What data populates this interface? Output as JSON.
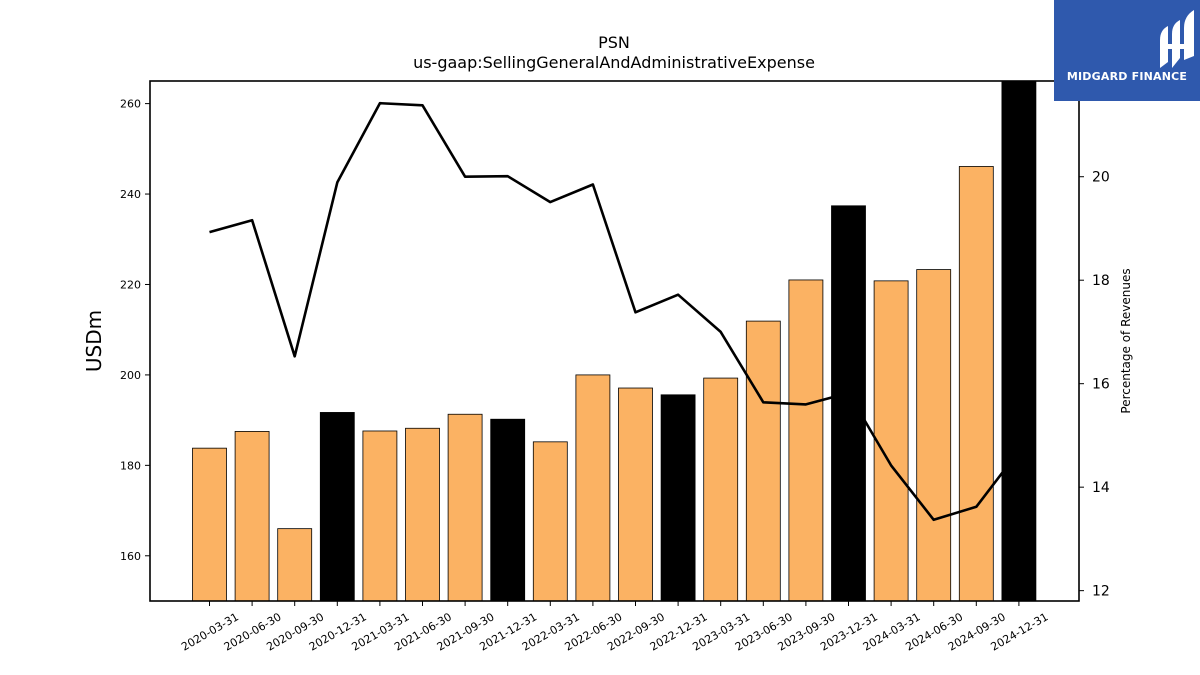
{
  "chart_data": {
    "type": "bar",
    "title": "PSN",
    "subtitle": "us-gaap:SellingGeneralAndAdministrativeExpense",
    "ylabel": "USDm",
    "y2label": "Percentage of Revenues",
    "ylim": [
      150,
      265
    ],
    "y2lim": [
      11.8,
      21.85
    ],
    "yticks": [
      160,
      180,
      200,
      220,
      240,
      260
    ],
    "y2ticks": [
      12,
      14,
      16,
      18,
      20
    ],
    "categories": [
      "2020-03-31",
      "2020-06-30",
      "2020-09-30",
      "2020-12-31",
      "2021-03-31",
      "2021-06-30",
      "2021-09-30",
      "2021-12-31",
      "2022-03-31",
      "2022-06-30",
      "2022-09-30",
      "2022-12-31",
      "2023-03-31",
      "2023-06-30",
      "2023-09-30",
      "2023-12-31",
      "2024-03-31",
      "2024-06-30",
      "2024-09-30",
      "2024-12-31"
    ],
    "series": [
      {
        "values": [
          183.8,
          187.5,
          166.0,
          191.7,
          187.6,
          188.2,
          191.3,
          190.2,
          185.2,
          200.0,
          197.1,
          195.6,
          199.3,
          211.9,
          221.0,
          237.4,
          220.8,
          223.3,
          246.1,
          265.0
        ],
        "colors": [
          "#fbb263",
          "#fbb263",
          "#fbb263",
          "#000000",
          "#fbb263",
          "#fbb263",
          "#fbb263",
          "#000000",
          "#fbb263",
          "#fbb263",
          "#fbb263",
          "#000000",
          "#fbb263",
          "#fbb263",
          "#fbb263",
          "#000000",
          "#fbb263",
          "#fbb263",
          "#fbb263",
          "#000000"
        ]
      },
      {
        "axis": "right",
        "type": "line",
        "color": "#000000",
        "values": [
          18.93,
          19.16,
          16.53,
          19.89,
          21.42,
          21.38,
          20.0,
          20.01,
          19.51,
          19.85,
          17.38,
          17.72,
          17.0,
          15.64,
          15.6,
          15.82,
          14.42,
          13.37,
          13.62,
          14.7
        ]
      }
    ],
    "grid": false,
    "legend": "none"
  },
  "logo": {
    "text": "MIDGARD FINANCE",
    "background": "#2f59ad"
  }
}
